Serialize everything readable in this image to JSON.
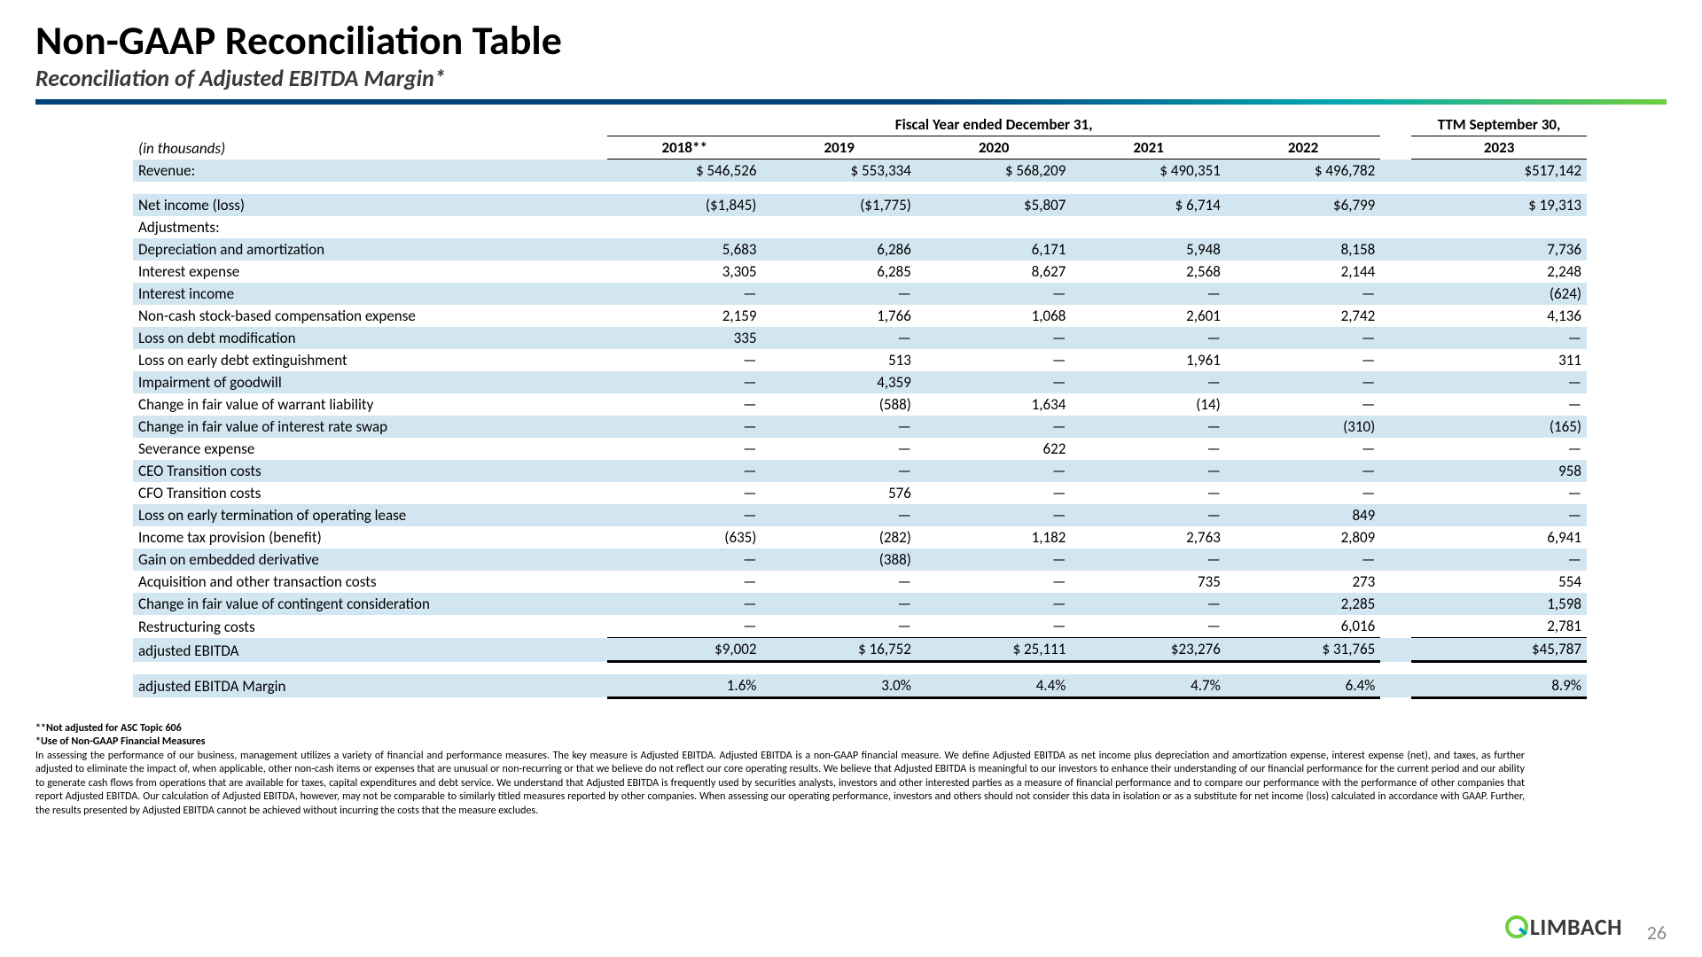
{
  "header": {
    "title": "Non-GAAP Reconciliation Table",
    "subtitle": "Reconciliation of Adjusted EBITDA Margin*"
  },
  "table": {
    "fy_header": "Fiscal Year ended December 31,",
    "ttm_header": "TTM September 30,",
    "unit_label": "(in thousands)",
    "years": [
      "2018**",
      "2019",
      "2020",
      "2021",
      "2022"
    ],
    "ttm_year": "2023",
    "shade_color": "#d2e6f2",
    "rows": [
      {
        "label": "Revenue:",
        "shaded": true,
        "vals": [
          "$ 546,526",
          "$ 553,334",
          "$ 568,209",
          "$ 490,351",
          "$ 496,782"
        ],
        "ttm": "$517,142"
      },
      {
        "label": "",
        "spacer": true
      },
      {
        "label": "Net income (loss)",
        "shaded": true,
        "vals": [
          "($1,845)",
          "($1,775)",
          "$5,807",
          "$ 6,714",
          "$6,799"
        ],
        "ttm": "$ 19,313"
      },
      {
        "label": "Adjustments:",
        "shaded": false,
        "vals": [
          "",
          "",
          "",
          "",
          ""
        ],
        "ttm": ""
      },
      {
        "label": "Depreciation and amortization",
        "shaded": true,
        "vals": [
          "5,683",
          "6,286",
          "6,171",
          "5,948",
          "8,158"
        ],
        "ttm": "7,736"
      },
      {
        "label": "Interest expense",
        "shaded": false,
        "vals": [
          "3,305",
          "6,285",
          "8,627",
          "2,568",
          "2,144"
        ],
        "ttm": "2,248"
      },
      {
        "label": "Interest income",
        "shaded": true,
        "vals": [
          "—",
          "—",
          "—",
          "—",
          "—"
        ],
        "ttm": "(624)"
      },
      {
        "label": "Non-cash stock-based compensation expense",
        "shaded": false,
        "vals": [
          "2,159",
          "1,766",
          "1,068",
          "2,601",
          "2,742"
        ],
        "ttm": "4,136"
      },
      {
        "label": "Loss on debt modification",
        "shaded": true,
        "vals": [
          "335",
          "—",
          "—",
          "—",
          "—"
        ],
        "ttm": "—"
      },
      {
        "label": "Loss on early debt extinguishment",
        "shaded": false,
        "vals": [
          "—",
          "513",
          "—",
          "1,961",
          "—"
        ],
        "ttm": "311"
      },
      {
        "label": "Impairment of goodwill",
        "shaded": true,
        "vals": [
          "—",
          "4,359",
          "—",
          "—",
          "—"
        ],
        "ttm": "—"
      },
      {
        "label": "Change in fair value of warrant liability",
        "shaded": false,
        "vals": [
          "—",
          "(588)",
          "1,634",
          "(14)",
          "—"
        ],
        "ttm": "—"
      },
      {
        "label": "Change in fair value of interest rate swap",
        "shaded": true,
        "vals": [
          "—",
          "—",
          "—",
          "—",
          "(310)"
        ],
        "ttm": "(165)"
      },
      {
        "label": "Severance expense",
        "shaded": false,
        "vals": [
          "—",
          "—",
          "622",
          "—",
          "—"
        ],
        "ttm": "—"
      },
      {
        "label": "CEO Transition costs",
        "shaded": true,
        "vals": [
          "—",
          "—",
          "—",
          "—",
          "—"
        ],
        "ttm": "958"
      },
      {
        "label": "CFO Transition costs",
        "shaded": false,
        "vals": [
          "—",
          "576",
          "—",
          "—",
          "—"
        ],
        "ttm": "—"
      },
      {
        "label": "Loss on early termination of operating lease",
        "shaded": true,
        "vals": [
          "—",
          "—",
          "—",
          "—",
          "849"
        ],
        "ttm": "—"
      },
      {
        "label": "Income tax provision (benefit)",
        "shaded": false,
        "vals": [
          "(635)",
          "(282)",
          "1,182",
          "2,763",
          "2,809"
        ],
        "ttm": "6,941"
      },
      {
        "label": "Gain on embedded derivative",
        "shaded": true,
        "vals": [
          "—",
          "(388)",
          "—",
          "—",
          "—"
        ],
        "ttm": "—"
      },
      {
        "label": "Acquisition and other transaction costs",
        "shaded": false,
        "vals": [
          "—",
          "—",
          "—",
          "735",
          "273"
        ],
        "ttm": "554"
      },
      {
        "label": "Change in fair value of contingent consideration",
        "shaded": true,
        "vals": [
          "—",
          "—",
          "—",
          "—",
          "2,285"
        ],
        "ttm": "1,598"
      },
      {
        "label": "Restructuring costs",
        "shaded": false,
        "vals": [
          "—",
          "—",
          "—",
          "—",
          "6,016"
        ],
        "ttm": "2,781",
        "underline_above": true
      },
      {
        "label": "adjusted EBITDA",
        "shaded": true,
        "vals": [
          "$9,002",
          "$ 16,752",
          "$ 25,111",
          "$23,276",
          "$ 31,765"
        ],
        "ttm": "$45,787",
        "total": true
      },
      {
        "label": "",
        "spacer": true
      },
      {
        "label": "adjusted EBITDA Margin",
        "shaded": true,
        "vals": [
          "1.6%",
          "3.0%",
          "4.4%",
          "4.7%",
          "6.4%"
        ],
        "ttm": "8.9%",
        "total": true
      }
    ]
  },
  "footnotes": {
    "line1": "**Not adjusted for ASC Topic 606",
    "line2": "*Use of Non-GAAP Financial Measures",
    "body": "In assessing the performance of our business, management utilizes a variety of financial and performance measures. The key measure is Adjusted EBITDA. Adjusted EBITDA is a non-GAAP financial measure. We define Adjusted EBITDA as net income plus depreciation and amortization expense, interest expense (net), and taxes, as further adjusted to eliminate the impact of, when applicable, other non-cash items or expenses that are unusual or non-recurring or that we believe do not reflect our core operating results. We believe that Adjusted EBITDA is meaningful to our investors to enhance their understanding of our financial performance for the current period and our ability to generate cash flows from operations that are available for taxes, capital expenditures and debt service. We understand that Adjusted EBITDA is frequently used by securities analysts, investors and other interested parties as a measure of financial performance and to compare our performance with the performance of other companies that report Adjusted EBITDA. Our calculation of Adjusted EBITDA, however, may not be comparable to similarly titled measures reported by other companies. When assessing our operating performance, investors and others should not consider this data in isolation or as a substitute for net income (loss) calculated in accordance with GAAP. Further, the results presented by Adjusted EBITDA cannot be achieved without incurring the costs that the measure excludes."
  },
  "logo_text": "LIMBACH",
  "page_number": "26"
}
